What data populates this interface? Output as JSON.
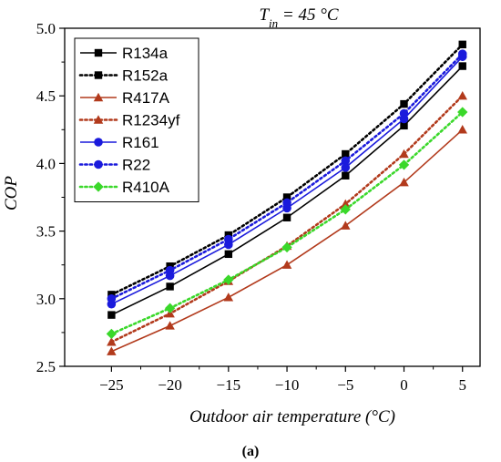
{
  "chart_data": {
    "type": "line",
    "title_prefix": "T",
    "title_subscript": "in",
    "title_suffix": " = 45 °C",
    "xlabel": "Outdoor air temperature (°C)",
    "ylabel": "COP",
    "caption": "(a)",
    "x": [
      -25,
      -20,
      -15,
      -10,
      -5,
      0,
      5
    ],
    "x_ticks": [
      "−25",
      "−20",
      "−15",
      "−10",
      "−5",
      "0",
      "5"
    ],
    "y_ticks": [
      "2.5",
      "3.0",
      "3.5",
      "4.0",
      "4.5",
      "5.0"
    ],
    "xlim": [
      -29,
      6.5
    ],
    "ylim": [
      2.5,
      5.0
    ],
    "legend_position": "top-left",
    "grid": false,
    "series": [
      {
        "name": "R134a",
        "color": "#000000",
        "style": "solid",
        "marker": "square",
        "values": [
          2.88,
          3.09,
          3.33,
          3.6,
          3.91,
          4.28,
          4.72
        ]
      },
      {
        "name": "R152a",
        "color": "#000000",
        "style": "dotted",
        "marker": "square",
        "values": [
          3.03,
          3.24,
          3.47,
          3.75,
          4.07,
          4.44,
          4.88
        ]
      },
      {
        "name": "R417A",
        "color": "#b23a1c",
        "style": "solid",
        "marker": "triangle",
        "values": [
          2.61,
          2.8,
          3.01,
          3.25,
          3.54,
          3.86,
          4.25
        ]
      },
      {
        "name": "R1234yf",
        "color": "#b23a1c",
        "style": "dotted",
        "marker": "triangle",
        "values": [
          2.68,
          2.89,
          3.13,
          3.39,
          3.7,
          4.07,
          4.5
        ]
      },
      {
        "name": "R161",
        "color": "#1a1adc",
        "style": "solid",
        "marker": "circle",
        "values": [
          2.96,
          3.17,
          3.4,
          3.67,
          3.97,
          4.33,
          4.79
        ]
      },
      {
        "name": "R22",
        "color": "#1a1adc",
        "style": "dotted",
        "marker": "circle",
        "values": [
          3.0,
          3.21,
          3.44,
          3.71,
          4.02,
          4.37,
          4.81
        ]
      },
      {
        "name": "R410A",
        "color": "#3ad82a",
        "style": "dotted",
        "marker": "diamond",
        "values": [
          2.74,
          2.93,
          3.14,
          3.38,
          3.66,
          3.99,
          4.38
        ]
      }
    ]
  }
}
